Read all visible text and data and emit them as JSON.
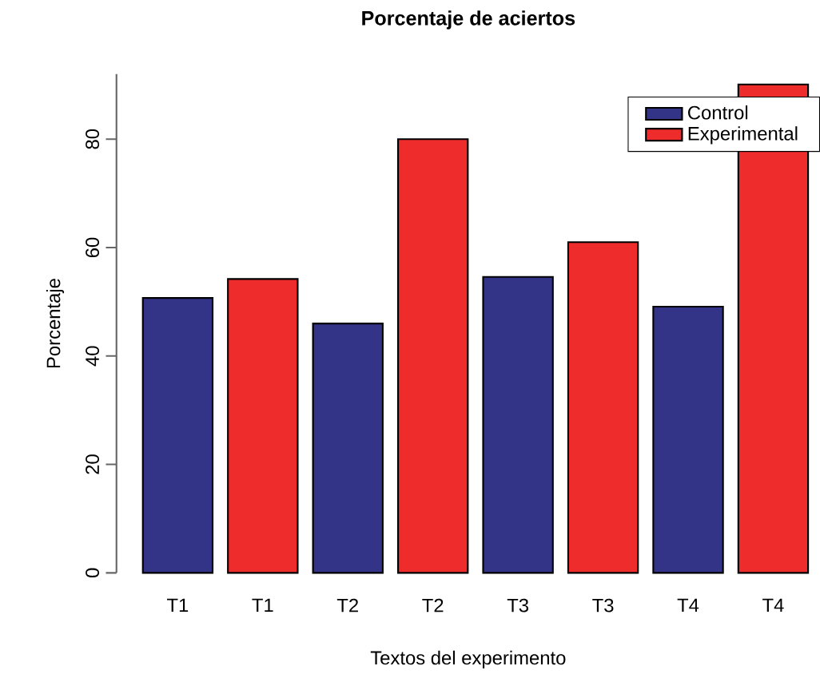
{
  "chart_data": {
    "type": "bar",
    "title": "Porcentaje de aciertos",
    "xlabel": "Textos del experimento",
    "ylabel": "Porcentaje",
    "categories": [
      "T1",
      "T1",
      "T2",
      "T2",
      "T3",
      "T3",
      "T4",
      "T4"
    ],
    "series": [
      {
        "name": "Control",
        "color": "#333388",
        "values": [
          50.7,
          null,
          46,
          null,
          54.6,
          null,
          49.1,
          null
        ]
      },
      {
        "name": "Experimental",
        "color": "#ee2c2c",
        "values": [
          null,
          54.2,
          null,
          80,
          null,
          61,
          null,
          90.1
        ]
      }
    ],
    "ylim": [
      0,
      92
    ],
    "yticks": [
      0,
      20,
      40,
      60,
      80
    ],
    "legend": "top right"
  }
}
